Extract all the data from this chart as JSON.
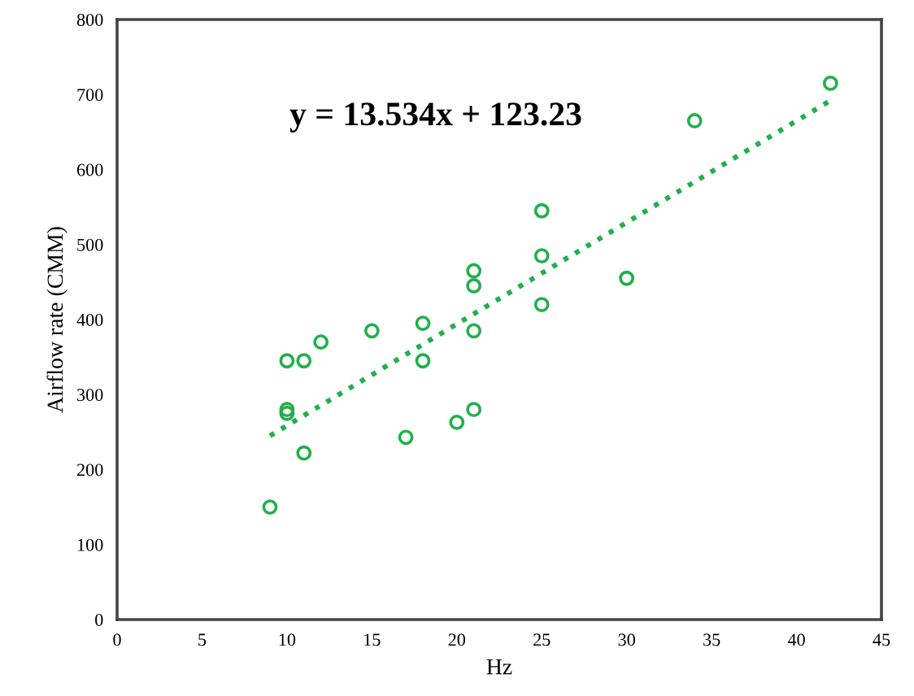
{
  "chart_data": {
    "type": "scatter",
    "xlabel": "Hz",
    "ylabel": "Airflow rate (CMM)",
    "xlim": [
      0,
      45
    ],
    "xticks": [
      0,
      5,
      10,
      15,
      20,
      25,
      30,
      35,
      40,
      45
    ],
    "ylim": [
      0,
      800
    ],
    "yticks": [
      0,
      100,
      200,
      300,
      400,
      500,
      600,
      700,
      800
    ],
    "grid": false,
    "annotations": [
      "y = 13.534x + 123.23"
    ],
    "series": [
      {
        "marker": "circle",
        "color": "#22b04b",
        "x": [
          9,
          10,
          10,
          10,
          11,
          11,
          12,
          15,
          17,
          18,
          18,
          20,
          21,
          21,
          21,
          21,
          25,
          25,
          25,
          30,
          34,
          42
        ],
        "values": [
          150,
          345,
          280,
          275,
          345,
          222,
          370,
          385,
          243,
          395,
          345,
          263,
          465,
          445,
          385,
          280,
          545,
          485,
          420,
          455,
          665,
          715
        ]
      },
      {
        "type": "line",
        "marker": "none",
        "color": "#22b04b",
        "line_style": "dotted",
        "x": [
          9,
          42
        ],
        "values": [
          245,
          692
        ]
      }
    ]
  }
}
